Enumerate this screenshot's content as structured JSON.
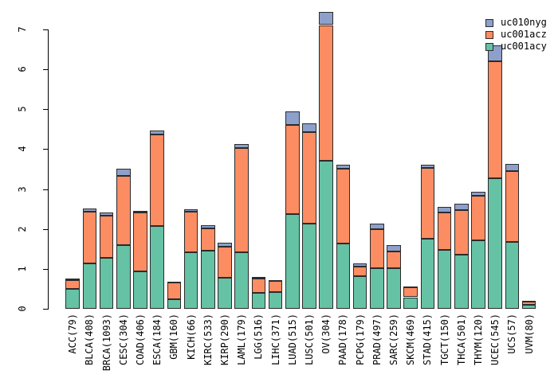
{
  "figure": {
    "background": "#ffffff"
  },
  "legend": {
    "position": "top-right",
    "items": [
      {
        "label": "uc010nyg",
        "color": "#8DA0CB"
      },
      {
        "label": "uc001acz",
        "color": "#FC8D62"
      },
      {
        "label": "uc001acy",
        "color": "#66C2A5"
      }
    ]
  },
  "chart_data": {
    "type": "bar",
    "stacked": true,
    "title": "",
    "xlabel": "",
    "ylabel": "",
    "ylim": [
      0,
      7
    ],
    "yticks": [
      0,
      1,
      2,
      3,
      4,
      5,
      6,
      7
    ],
    "grid": false,
    "legend_position": "top-right",
    "bar_border_color": "#2b2b2b",
    "categories": [
      "ACC(79)",
      "BLCA(408)",
      "BRCA(1093)",
      "CESC(304)",
      "COAD(406)",
      "ESCA(184)",
      "GBM(160)",
      "KICH(66)",
      "KIRC(533)",
      "KIRP(290)",
      "LAML(179)",
      "LGG(516)",
      "LIHC(371)",
      "LUAD(515)",
      "LUSC(501)",
      "OV(304)",
      "PAAD(178)",
      "PCPG(179)",
      "PRAD(497)",
      "SARC(259)",
      "SKCM(469)",
      "STAD(415)",
      "TGCT(150)",
      "THCA(501)",
      "THYM(120)",
      "UCEC(545)",
      "UCS(57)",
      "UVM(80)"
    ],
    "series": [
      {
        "name": "uc001acy",
        "color": "#66C2A5",
        "values": [
          0.49,
          1.14,
          1.27,
          1.59,
          0.94,
          2.07,
          0.24,
          1.42,
          1.45,
          0.77,
          1.42,
          0.4,
          0.41,
          2.37,
          2.13,
          3.71,
          1.64,
          0.81,
          1.02,
          1.02,
          0.29,
          1.75,
          1.47,
          1.36,
          1.71,
          3.27,
          1.67,
          0.1
        ]
      },
      {
        "name": "uc001acz",
        "color": "#FC8D62",
        "values": [
          0.23,
          1.29,
          1.07,
          1.75,
          1.48,
          2.3,
          0.42,
          1.01,
          0.56,
          0.79,
          2.6,
          0.36,
          0.29,
          2.24,
          2.29,
          3.4,
          1.87,
          0.24,
          0.97,
          0.42,
          0.24,
          1.78,
          0.95,
          1.11,
          1.13,
          2.94,
          1.78,
          0.09
        ]
      },
      {
        "name": "uc010nyg",
        "color": "#8DA0CB",
        "values": [
          0.03,
          0.08,
          0.07,
          0.17,
          0.03,
          0.1,
          0.02,
          0.07,
          0.08,
          0.1,
          0.1,
          0.03,
          0.02,
          0.33,
          0.23,
          0.33,
          0.1,
          0.08,
          0.15,
          0.15,
          0.03,
          0.09,
          0.13,
          0.16,
          0.1,
          0.4,
          0.19,
          0.02
        ]
      }
    ]
  }
}
